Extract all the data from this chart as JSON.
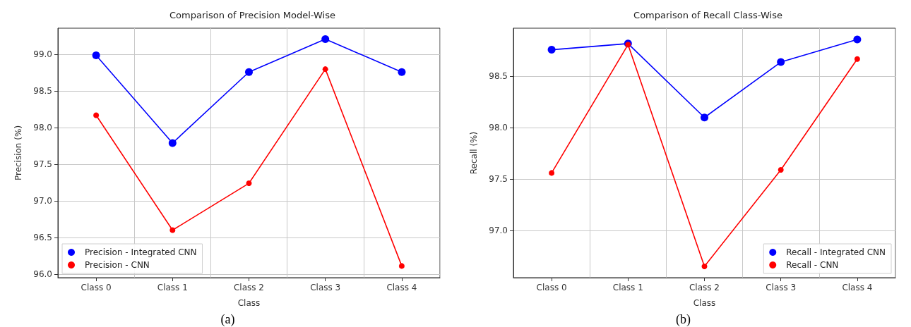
{
  "chart_data": [
    {
      "type": "line",
      "title": "Comparison of Precision Model-Wise",
      "xlabel": "Class",
      "ylabel": "Precision (%)",
      "annotations": [
        "(a)"
      ],
      "categories": [
        "Class 0",
        "Class 1",
        "Class 2",
        "Class 3",
        "Class 4"
      ],
      "series": [
        {
          "name": "Precision - Integrated CNN",
          "color": "#0000ff",
          "values": [
            98.99,
            97.79,
            98.76,
            99.21,
            98.76
          ]
        },
        {
          "name": "Precision - CNN",
          "color": "#ff0000",
          "values": [
            98.17,
            96.6,
            97.24,
            98.8,
            96.11
          ]
        }
      ],
      "ylim": [
        95.95,
        99.36
      ],
      "yticks": [
        {
          "value": 96,
          "label": "96.0"
        },
        {
          "value": 96.5,
          "label": "96.5"
        },
        {
          "value": 97,
          "label": "97.0"
        },
        {
          "value": 97.5,
          "label": "97.5"
        },
        {
          "value": 98,
          "label": "98.0"
        },
        {
          "value": 98.5,
          "label": "98.5"
        },
        {
          "value": 99,
          "label": "99.0"
        }
      ],
      "grid": true,
      "legend": "bottom left",
      "marker": "circle",
      "line_style": "solid"
    },
    {
      "type": "line",
      "title": "Comparison of Recall Class-Wise",
      "xlabel": "Class",
      "ylabel": "Recall (%)",
      "annotations": [
        "(b)"
      ],
      "categories": [
        "Class 0",
        "Class 1",
        "Class 2",
        "Class 3",
        "Class 4"
      ],
      "series": [
        {
          "name": "Recall - Integrated CNN",
          "color": "#0000ff",
          "values": [
            98.76,
            98.82,
            98.1,
            98.64,
            98.86
          ]
        },
        {
          "name": "Recall - CNN",
          "color": "#ff0000",
          "values": [
            97.56,
            98.81,
            96.65,
            97.59,
            98.67
          ]
        }
      ],
      "ylim": [
        96.54,
        98.97
      ],
      "yticks": [
        {
          "value": 97,
          "label": "97.0"
        },
        {
          "value": 97.5,
          "label": "97.5"
        },
        {
          "value": 98,
          "label": "98.0"
        },
        {
          "value": 98.5,
          "label": "98.5"
        }
      ],
      "grid": true,
      "legend": "bottom right",
      "marker": "circle",
      "line_style": "solid"
    }
  ]
}
